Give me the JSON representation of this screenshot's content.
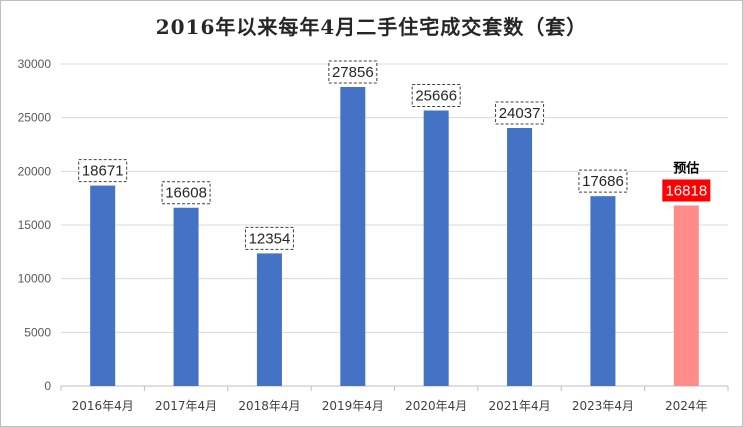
{
  "chart_data": {
    "type": "bar",
    "title": "2016年以来每年4月二手住宅成交套数（套）",
    "categories": [
      "2016年4月",
      "2017年4月",
      "2018年4月",
      "2019年4月",
      "2020年4月",
      "2021年4月",
      "2023年4月",
      "2024年"
    ],
    "values": [
      18671,
      16608,
      12354,
      27856,
      25666,
      24037,
      17686,
      16818
    ],
    "data_labels": [
      "18671",
      "16608",
      "12354",
      "27856",
      "25666",
      "24037",
      "17686",
      "16818"
    ],
    "ylim": [
      0,
      30000
    ],
    "yticks": [
      0,
      5000,
      10000,
      15000,
      20000,
      25000,
      30000
    ],
    "ytick_labels": [
      "0",
      "5000",
      "10000",
      "15000",
      "20000",
      "25000",
      "30000"
    ],
    "grid": true,
    "legend": "none",
    "forecast_index": 7,
    "forecast_note": "预估",
    "colors": {
      "bar": "#4472c4",
      "forecast_bar": "#ff8b8b",
      "forecast_label_bg": "#ff0000",
      "forecast_label_text": "#ffffff",
      "grid": "#d9d9d9",
      "axis": "#bfbfbf"
    }
  }
}
